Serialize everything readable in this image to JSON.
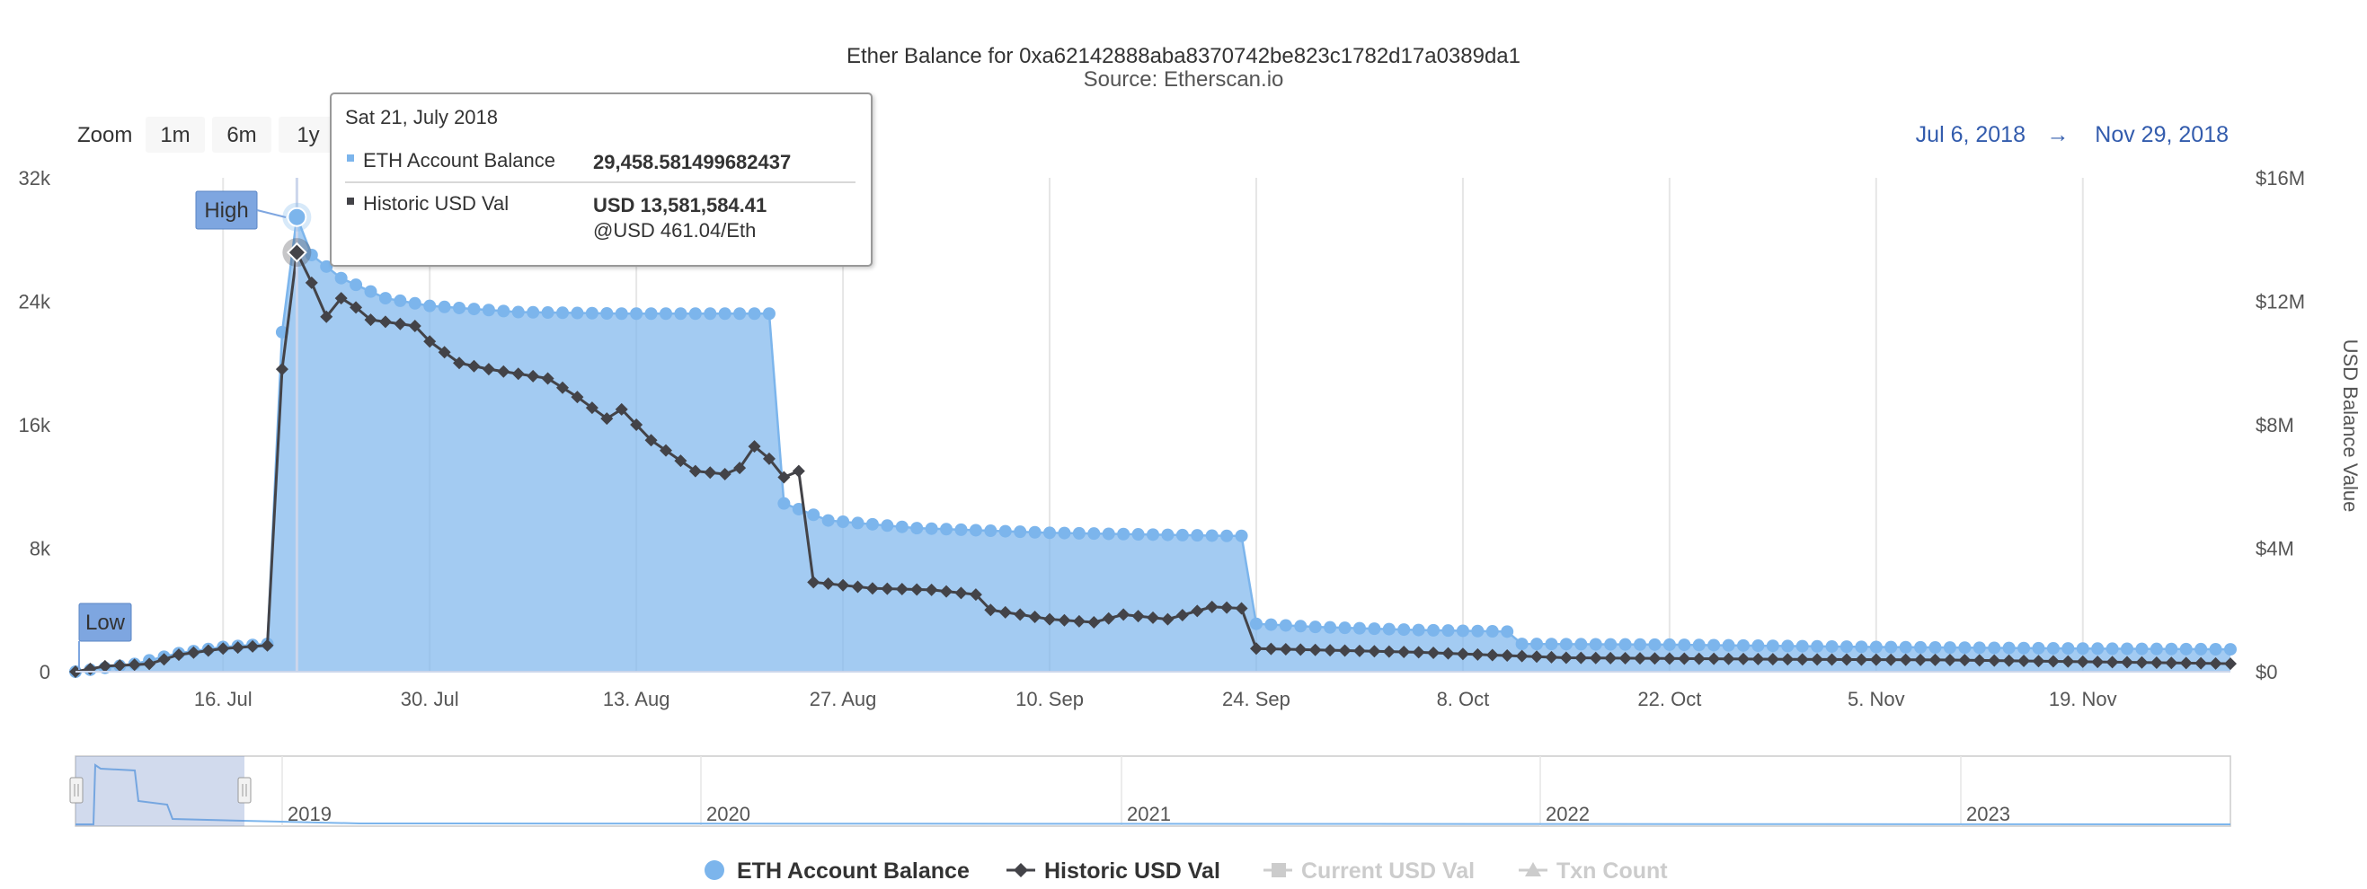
{
  "chart_data": {
    "type": "area",
    "title": "Ether Balance for 0xa62142888aba8370742be823c1782d17a0389da1",
    "subtitle": "Source: Etherscan.io",
    "ylabel_right": "USD Balance Value",
    "x_range": [
      "2018-07-06",
      "2018-11-29"
    ],
    "x_ticks": [
      "16. Jul",
      "30. Jul",
      "13. Aug",
      "27. Aug",
      "10. Sep",
      "24. Sep",
      "8. Oct",
      "22. Oct",
      "5. Nov",
      "19. Nov"
    ],
    "y_left_ticks": [
      "0",
      "8k",
      "16k",
      "24k",
      "32k"
    ],
    "y_left_range": [
      0,
      32000
    ],
    "y_right_ticks": [
      "$0",
      "$4M",
      "$8M",
      "$12M",
      "$16M"
    ],
    "y_right_range": [
      0,
      16000000
    ],
    "grid": "vertical",
    "legend_position": "bottom",
    "series": [
      {
        "name": "ETH Account Balance",
        "color": "#7cb5ec",
        "axis": "left",
        "points": [
          [
            "2018-07-06",
            0
          ],
          [
            "2018-07-10",
            500
          ],
          [
            "2018-07-13",
            1200
          ],
          [
            "2018-07-16",
            1600
          ],
          [
            "2018-07-19",
            1800
          ],
          [
            "2018-07-20",
            22000
          ],
          [
            "2018-07-21",
            29458
          ],
          [
            "2018-07-22",
            27000
          ],
          [
            "2018-07-24",
            25500
          ],
          [
            "2018-07-27",
            24200
          ],
          [
            "2018-07-30",
            23700
          ],
          [
            "2018-08-05",
            23300
          ],
          [
            "2018-08-12",
            23200
          ],
          [
            "2018-08-20",
            23200
          ],
          [
            "2018-08-22",
            23200
          ],
          [
            "2018-08-23",
            10900
          ],
          [
            "2018-08-26",
            9800
          ],
          [
            "2018-09-01",
            9300
          ],
          [
            "2018-09-10",
            9000
          ],
          [
            "2018-09-22",
            8800
          ],
          [
            "2018-09-23",
            8800
          ],
          [
            "2018-09-24",
            3100
          ],
          [
            "2018-09-28",
            2900
          ],
          [
            "2018-10-05",
            2700
          ],
          [
            "2018-10-11",
            2600
          ],
          [
            "2018-10-12",
            1800
          ],
          [
            "2018-10-22",
            1750
          ],
          [
            "2018-11-05",
            1600
          ],
          [
            "2018-11-19",
            1500
          ],
          [
            "2018-11-29",
            1450
          ]
        ]
      },
      {
        "name": "Historic USD Val",
        "color": "#434348",
        "axis": "right",
        "points": [
          [
            "2018-07-06",
            0
          ],
          [
            "2018-07-08",
            180000
          ],
          [
            "2018-07-11",
            250000
          ],
          [
            "2018-07-13",
            550000
          ],
          [
            "2018-07-16",
            750000
          ],
          [
            "2018-07-19",
            850000
          ],
          [
            "2018-07-20",
            9800000
          ],
          [
            "2018-07-21",
            13581584
          ],
          [
            "2018-07-22",
            12600000
          ],
          [
            "2018-07-23",
            11500000
          ],
          [
            "2018-07-24",
            12100000
          ],
          [
            "2018-07-25",
            11800000
          ],
          [
            "2018-07-26",
            11400000
          ],
          [
            "2018-07-29",
            11200000
          ],
          [
            "2018-07-30",
            10700000
          ],
          [
            "2018-08-01",
            10000000
          ],
          [
            "2018-08-03",
            9800000
          ],
          [
            "2018-08-07",
            9500000
          ],
          [
            "2018-08-09",
            8900000
          ],
          [
            "2018-08-11",
            8200000
          ],
          [
            "2018-08-12",
            8500000
          ],
          [
            "2018-08-14",
            7500000
          ],
          [
            "2018-08-17",
            6500000
          ],
          [
            "2018-08-19",
            6400000
          ],
          [
            "2018-08-20",
            6600000
          ],
          [
            "2018-08-21",
            7300000
          ],
          [
            "2018-08-22",
            6900000
          ],
          [
            "2018-08-23",
            6300000
          ],
          [
            "2018-08-24",
            6500000
          ],
          [
            "2018-08-25",
            2900000
          ],
          [
            "2018-08-29",
            2700000
          ],
          [
            "2018-09-02",
            2650000
          ],
          [
            "2018-09-05",
            2500000
          ],
          [
            "2018-09-06",
            2000000
          ],
          [
            "2018-09-10",
            1700000
          ],
          [
            "2018-09-13",
            1600000
          ],
          [
            "2018-09-15",
            1850000
          ],
          [
            "2018-09-18",
            1700000
          ],
          [
            "2018-09-21",
            2100000
          ],
          [
            "2018-09-23",
            2050000
          ],
          [
            "2018-09-24",
            750000
          ],
          [
            "2018-10-05",
            630000
          ],
          [
            "2018-10-15",
            450000
          ],
          [
            "2018-10-30",
            400000
          ],
          [
            "2018-11-10",
            380000
          ],
          [
            "2018-11-29",
            260000
          ]
        ]
      }
    ],
    "annotations": [
      "High",
      "Low"
    ]
  },
  "zoom": {
    "label": "Zoom",
    "buttons": [
      "1m",
      "6m",
      "1y"
    ]
  },
  "range": {
    "from": "Jul 6, 2018",
    "arrow": "→",
    "to": "Nov 29, 2018"
  },
  "tooltip": {
    "date": "Sat 21, July 2018",
    "eth_label": "ETH Account Balance",
    "eth_value": "29,458.581499682437",
    "usd_label": "Historic USD Val",
    "usd_value": "USD 13,581,584.41",
    "usd_rate": "@USD 461.04/Eth"
  },
  "navigator": {
    "years": [
      "2019",
      "2020",
      "2021",
      "2022",
      "2023"
    ]
  },
  "legend": [
    {
      "label": "ETH Account Balance",
      "active": true,
      "color": "#7cb5ec",
      "icon": "circle-icon"
    },
    {
      "label": "Historic USD Val",
      "active": true,
      "color": "#434348",
      "icon": "diamond-line-icon"
    },
    {
      "label": "Current USD Val",
      "active": false,
      "color": "#cccccc",
      "icon": "square-line-icon"
    },
    {
      "label": "Txn Count",
      "active": false,
      "color": "#cccccc",
      "icon": "triangle-line-icon"
    }
  ]
}
